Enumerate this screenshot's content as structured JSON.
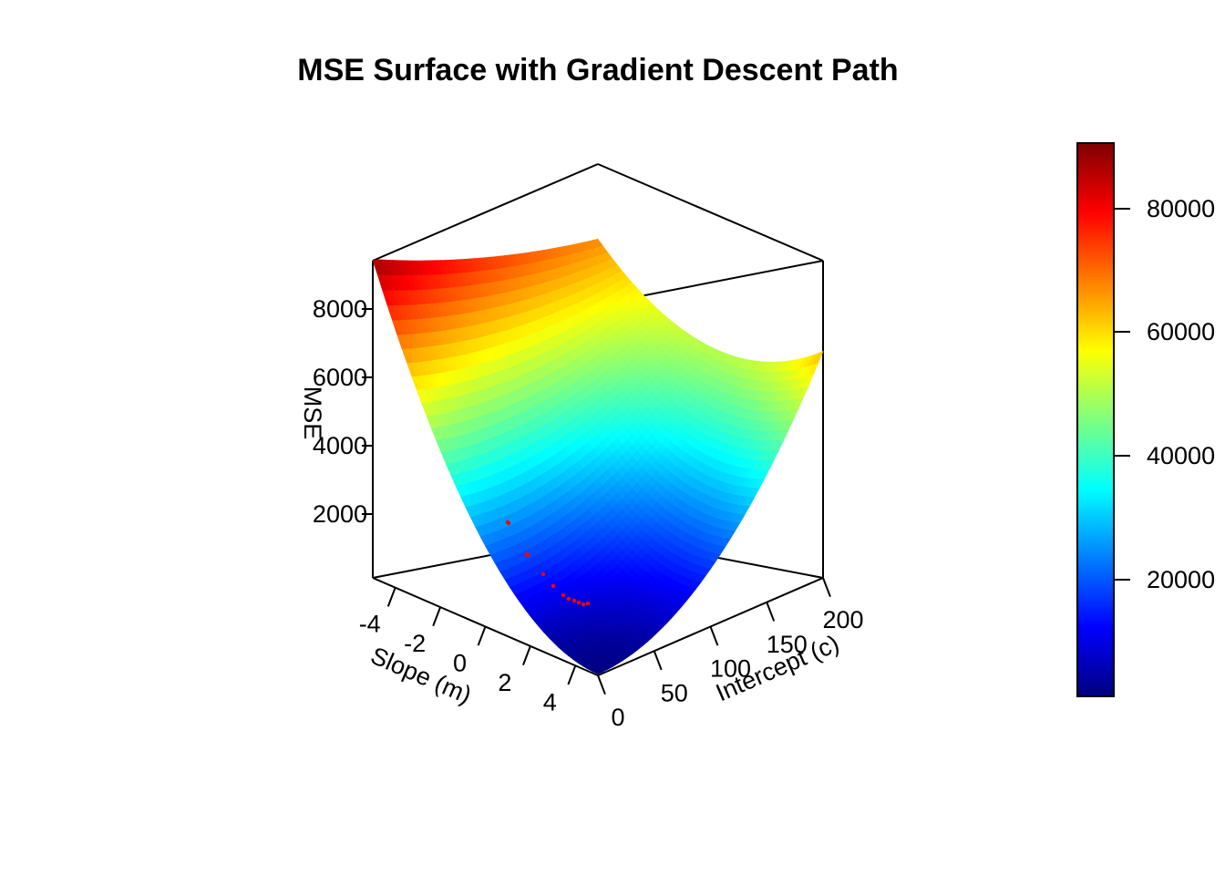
{
  "chart_data": {
    "type": "surface3d",
    "title": "MSE Surface with Gradient Descent Path",
    "x_axis": {
      "label": "Slope (m)",
      "range": [
        -5,
        5
      ],
      "ticks": [
        -4,
        -2,
        0,
        2,
        4
      ]
    },
    "y_axis": {
      "label": "Intercept (c)",
      "range": [
        0,
        200
      ],
      "ticks": [
        0,
        50,
        100,
        150,
        200
      ]
    },
    "z_axis": {
      "label": "MSE",
      "ticks": [
        2000,
        4000,
        6000,
        8000
      ],
      "tick_labels": [
        "2000",
        "4000",
        "6000",
        "8000"
      ]
    },
    "colorbar": {
      "ticks": [
        20000,
        40000,
        60000,
        80000
      ],
      "tick_labels": [
        "20000",
        "40000",
        "60000",
        "80000"
      ],
      "colormap": [
        "#00007F",
        "#0000FF",
        "#007FFF",
        "#00FFFF",
        "#7FFF7F",
        "#FFFF00",
        "#FF7F00",
        "#FF0000",
        "#7F0000"
      ],
      "position": "right"
    },
    "gd_path_color": "#FF0000"
  }
}
